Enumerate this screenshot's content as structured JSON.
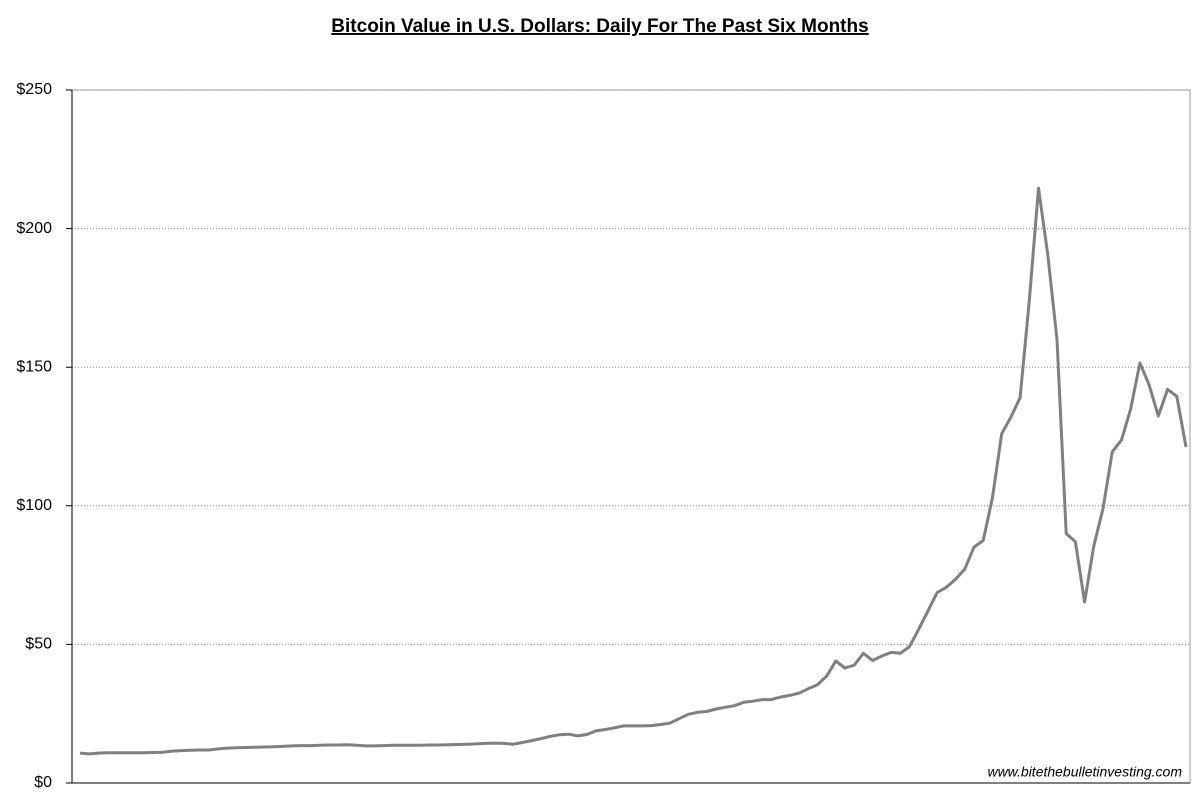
{
  "chart_data": {
    "type": "line",
    "title": "Bitcoin Value in U.S. Dollars: Daily For The Past Six Months",
    "annotation": "www.bitethebulletinvesting.com",
    "series": [
      {
        "name": "Bitcoin",
        "color": "#808080",
        "values": [
          10.8,
          10.5,
          10.8,
          10.9,
          10.9,
          10.9,
          10.9,
          10.9,
          11.0,
          11.1,
          11.5,
          11.7,
          11.8,
          11.9,
          11.9,
          12.3,
          12.6,
          12.7,
          12.8,
          12.9,
          13.0,
          13.1,
          13.2,
          13.4,
          13.5,
          13.5,
          13.6,
          13.7,
          13.7,
          13.8,
          13.6,
          13.4,
          13.4,
          13.5,
          13.6,
          13.6,
          13.6,
          13.6,
          13.7,
          13.7,
          13.8,
          13.9,
          14.0,
          14.1,
          14.3,
          14.4,
          14.3,
          14.0,
          14.6,
          15.3,
          16.0,
          16.8,
          17.4,
          17.6,
          17.0,
          17.5,
          18.8,
          19.3,
          19.9,
          20.6,
          20.6,
          20.6,
          20.7,
          21.1,
          21.6,
          23.2,
          24.8,
          25.5,
          25.8,
          26.7,
          27.3,
          27.9,
          29.1,
          29.5,
          30.1,
          30.1,
          31.0,
          31.6,
          32.4,
          34.0,
          35.4,
          38.5,
          44.0,
          41.5,
          42.5,
          46.8,
          44.2,
          45.8,
          47.1,
          46.8,
          49.2,
          55.5,
          62.0,
          68.7,
          70.6,
          73.5,
          77.2,
          85.1,
          87.5,
          103,
          126,
          132,
          139,
          174,
          214.6,
          190.5,
          160,
          90,
          87,
          65.3,
          85.5,
          99,
          119.5,
          123.7,
          135,
          151.5,
          143.6,
          132.4,
          142,
          139.5,
          121.2
        ]
      }
    ],
    "ylim": [
      0,
      250
    ],
    "yticks": [
      {
        "value": 0,
        "label": "$0"
      },
      {
        "value": 50,
        "label": "$50"
      },
      {
        "value": 100,
        "label": "$100"
      },
      {
        "value": 150,
        "label": "$150"
      },
      {
        "value": 200,
        "label": "$200"
      },
      {
        "value": 250,
        "label": "$250"
      }
    ],
    "grid": true
  }
}
